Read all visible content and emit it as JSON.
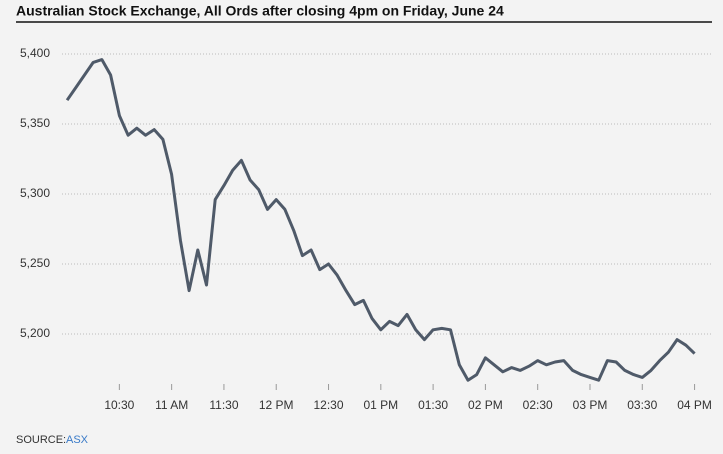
{
  "chart_data": {
    "type": "line",
    "title": "Australian Stock Exchange, All Ords after closing 4pm on Friday, June 24",
    "source_label": "SOURCE:",
    "source": "ASX",
    "x": [
      600,
      605,
      610,
      615,
      620,
      625,
      630,
      635,
      640,
      645,
      650,
      655,
      660,
      665,
      670,
      675,
      680,
      685,
      690,
      695,
      700,
      705,
      710,
      715,
      720,
      725,
      730,
      735,
      740,
      745,
      750,
      755,
      760,
      765,
      770,
      775,
      780,
      785,
      790,
      795,
      800,
      805,
      810,
      815,
      820,
      825,
      830,
      835,
      840,
      845,
      850,
      855,
      860,
      865,
      870,
      875,
      880,
      885,
      890,
      895,
      900,
      905,
      910,
      915,
      920,
      925,
      930,
      935,
      940,
      945,
      950,
      955,
      960
    ],
    "series": [
      {
        "name": "All Ords",
        "color": "#4f5a69",
        "values": [
          5367,
          5376,
          5385,
          5394,
          5396,
          5385,
          5356,
          5342,
          5347,
          5342,
          5346,
          5339,
          5314,
          5267,
          5231,
          5260,
          5235,
          5296,
          5306,
          5317,
          5324,
          5310,
          5303,
          5289,
          5296,
          5289,
          5274,
          5256,
          5260,
          5246,
          5250,
          5242,
          5231,
          5221,
          5224,
          5211,
          5203,
          5209,
          5206,
          5214,
          5203,
          5196,
          5203,
          5204,
          5203,
          5178,
          5167,
          5171,
          5183,
          5178,
          5173,
          5176,
          5174,
          5177,
          5181,
          5178,
          5180,
          5181,
          5174,
          5171,
          5169,
          5167,
          5181,
          5180,
          5174,
          5171,
          5169,
          5174,
          5181,
          5187,
          5196,
          5192,
          5186
        ]
      }
    ],
    "xlim": [
      573,
      970
    ],
    "xticks": [
      {
        "value": 630,
        "label": "10:30"
      },
      {
        "value": 660,
        "label": "11 AM"
      },
      {
        "value": 690,
        "label": "11:30"
      },
      {
        "value": 720,
        "label": "12 PM"
      },
      {
        "value": 750,
        "label": "12:30"
      },
      {
        "value": 780,
        "label": "01 PM"
      },
      {
        "value": 810,
        "label": "01:30"
      },
      {
        "value": 840,
        "label": "02 PM"
      },
      {
        "value": 870,
        "label": "02:30"
      },
      {
        "value": 900,
        "label": "03 PM"
      },
      {
        "value": 930,
        "label": "03:30"
      },
      {
        "value": 960,
        "label": "04 PM"
      }
    ],
    "ylim": [
      5160,
      5420
    ],
    "yticks": [
      {
        "value": 5200,
        "label": "5,200"
      },
      {
        "value": 5250,
        "label": "5,250"
      },
      {
        "value": 5300,
        "label": "5,300"
      },
      {
        "value": 5350,
        "label": "5,350"
      },
      {
        "value": 5400,
        "label": "5,400"
      }
    ],
    "grid": true
  }
}
